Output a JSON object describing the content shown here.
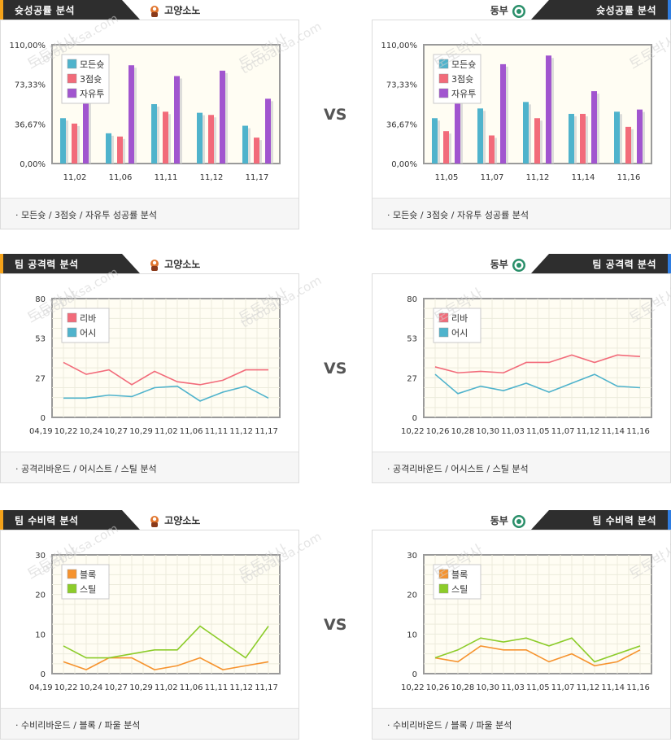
{
  "vs_label": "VS",
  "teams": {
    "left": "고양소노",
    "right": "동부"
  },
  "sections": [
    {
      "header": "슛성공률 분석",
      "footer": "·  모든슛 / 3점슛 / 자유투 성공률 분석",
      "chart_data": [
        {
          "type": "bar",
          "ylim": [
            0,
            110
          ],
          "yticks": [
            "0,00%",
            "36,67%",
            "73,33%",
            "110,00%"
          ],
          "categories": [
            "11,02",
            "11,06",
            "11,11",
            "11,12",
            "11,17"
          ],
          "series": [
            {
              "name": "모든슛",
              "color": "#4fb3cc",
              "values": [
                42,
                28,
                55,
                47,
                35
              ]
            },
            {
              "name": "3점슛",
              "color": "#f26b7a",
              "values": [
                37,
                25,
                48,
                45,
                24
              ]
            },
            {
              "name": "자유투",
              "color": "#a155cf",
              "values": [
                60,
                91,
                81,
                86,
                60
              ]
            }
          ]
        },
        {
          "type": "bar",
          "ylim": [
            0,
            110
          ],
          "yticks": [
            "0,00%",
            "36,67%",
            "73,33%",
            "110,00%"
          ],
          "categories": [
            "11,05",
            "11,07",
            "11,12",
            "11,14",
            "11,16"
          ],
          "series": [
            {
              "name": "모든슛",
              "color": "#4fb3cc",
              "values": [
                42,
                51,
                57,
                46,
                48
              ]
            },
            {
              "name": "3점슛",
              "color": "#f26b7a",
              "values": [
                30,
                26,
                42,
                46,
                34
              ]
            },
            {
              "name": "자유투",
              "color": "#a155cf",
              "values": [
                60,
                92,
                100,
                67,
                50
              ]
            }
          ]
        }
      ]
    },
    {
      "header": "팀 공격력 분석",
      "footer": "·  공격리바운드 / 어시스트 / 스틸 분석",
      "chart_data": [
        {
          "type": "line",
          "ylim": [
            0,
            80
          ],
          "yticks": [
            "0",
            "27",
            "53",
            "80"
          ],
          "categories": [
            "04,19",
            "10,22",
            "10,24",
            "10,27",
            "10,29",
            "11,02",
            "11,06",
            "11,11",
            "11,12",
            "11,17"
          ],
          "series": [
            {
              "name": "리바",
              "color": "#f26b7a",
              "values": [
                37,
                29,
                32,
                22,
                31,
                24,
                22,
                25,
                32,
                32
              ]
            },
            {
              "name": "어시",
              "color": "#4fb3cc",
              "values": [
                13,
                13,
                15,
                14,
                20,
                21,
                11,
                17,
                21,
                13
              ]
            }
          ]
        },
        {
          "type": "line",
          "ylim": [
            0,
            80
          ],
          "yticks": [
            "0",
            "27",
            "53",
            "80"
          ],
          "categories": [
            "10,22",
            "10,26",
            "10,28",
            "10,30",
            "11,03",
            "11,05",
            "11,07",
            "11,12",
            "11,14",
            "11,16"
          ],
          "series": [
            {
              "name": "리바",
              "color": "#f26b7a",
              "values": [
                34,
                30,
                31,
                30,
                37,
                37,
                42,
                37,
                42,
                41
              ]
            },
            {
              "name": "어시",
              "color": "#4fb3cc",
              "values": [
                29,
                16,
                21,
                18,
                23,
                17,
                23,
                29,
                21,
                20
              ]
            }
          ]
        }
      ]
    },
    {
      "header": "팀 수비력 분석",
      "footer": "·  수비리바운드 / 블록 / 파울 분석",
      "chart_data": [
        {
          "type": "line",
          "ylim": [
            0,
            30
          ],
          "yticks": [
            "0",
            "10",
            "20",
            "30"
          ],
          "categories": [
            "04,19",
            "10,22",
            "10,24",
            "10,27",
            "10,29",
            "11,02",
            "11,06",
            "11,11",
            "11,12",
            "11,17"
          ],
          "series": [
            {
              "name": "블록",
              "color": "#f6932e",
              "values": [
                3,
                1,
                4,
                4,
                1,
                2,
                4,
                1,
                2,
                3
              ]
            },
            {
              "name": "스틸",
              "color": "#8ccc2a",
              "values": [
                7,
                4,
                4,
                5,
                6,
                6,
                12,
                8,
                4,
                12
              ]
            }
          ]
        },
        {
          "type": "line",
          "ylim": [
            0,
            30
          ],
          "yticks": [
            "0",
            "10",
            "20",
            "30"
          ],
          "categories": [
            "10,22",
            "10,26",
            "10,28",
            "10,30",
            "11,03",
            "11,05",
            "11,07",
            "11,12",
            "11,14",
            "11,16"
          ],
          "series": [
            {
              "name": "블록",
              "color": "#f6932e",
              "values": [
                4,
                3,
                7,
                6,
                6,
                3,
                5,
                2,
                3,
                6
              ]
            },
            {
              "name": "스틸",
              "color": "#8ccc2a",
              "values": [
                4,
                6,
                9,
                8,
                9,
                7,
                9,
                3,
                5,
                7
              ]
            }
          ]
        }
      ]
    }
  ],
  "watermark": "토토박사",
  "watermark_url": "totobaksa.com"
}
